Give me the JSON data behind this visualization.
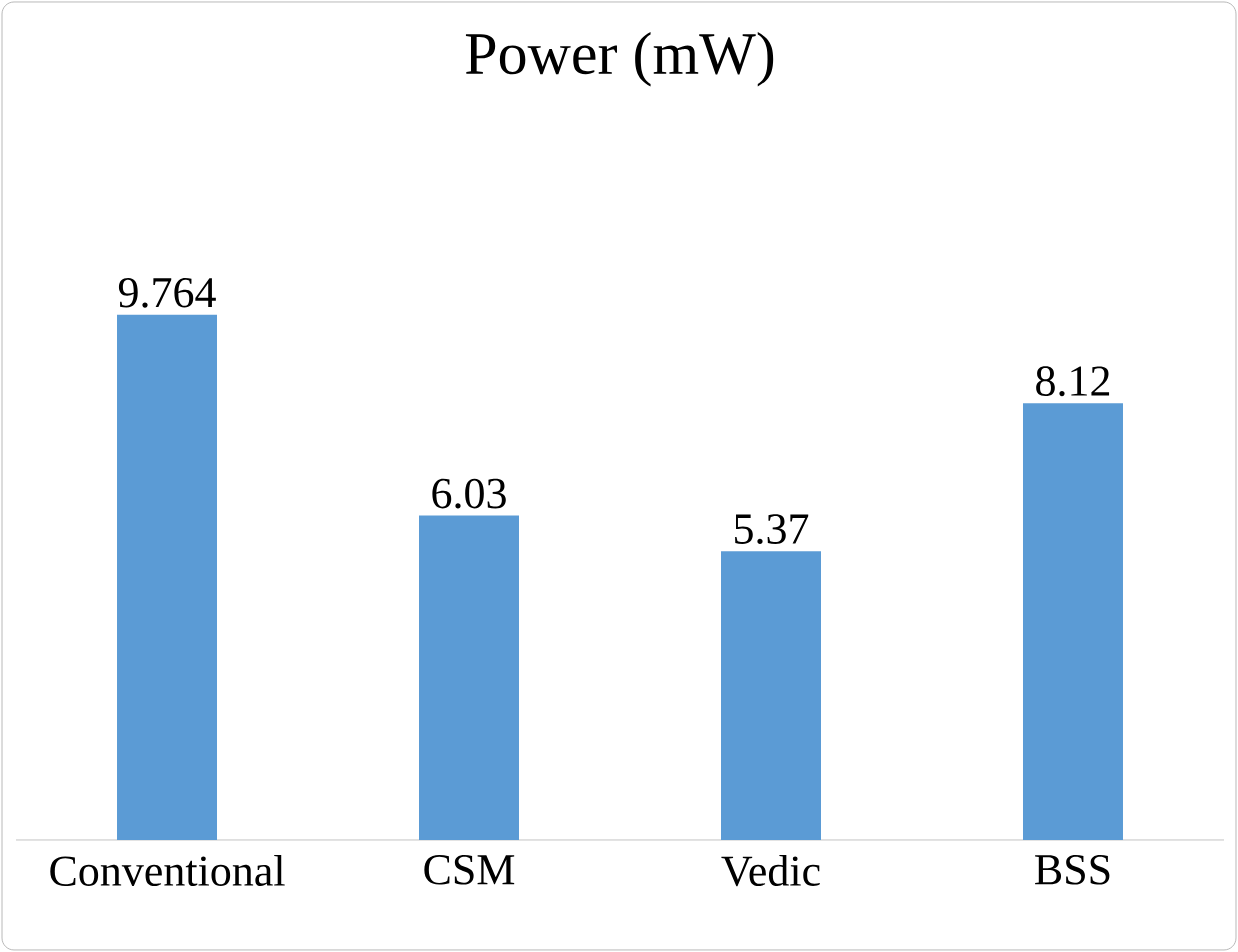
{
  "chart_data": {
    "type": "bar",
    "title": "Power (mW)",
    "categories": [
      "Conventional",
      "CSM",
      "Vedic",
      "BSS"
    ],
    "values": [
      9.764,
      6.03,
      5.37,
      8.12
    ],
    "color": "#5b9bd5",
    "data_labels": true
  }
}
